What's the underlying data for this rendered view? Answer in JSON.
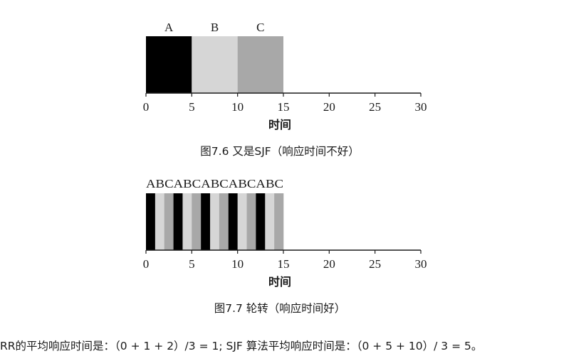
{
  "chart_data": [
    {
      "type": "bar",
      "subtype": "timeline",
      "title": "图7.6 又是SJF（响应时间不好）",
      "xlabel": "时间",
      "xlim": [
        0,
        30
      ],
      "xticks": [
        0,
        5,
        10,
        15,
        20,
        25,
        30
      ],
      "segments": [
        {
          "label": "A",
          "start": 0,
          "end": 5,
          "color": "#000000"
        },
        {
          "label": "B",
          "start": 5,
          "end": 10,
          "color": "#d6d6d6"
        },
        {
          "label": "C",
          "start": 10,
          "end": 15,
          "color": "#a8a8a8"
        }
      ]
    },
    {
      "type": "bar",
      "subtype": "timeline",
      "title": "图7.7 轮转（响应时间好）",
      "xlabel": "时间",
      "xlim": [
        0,
        30
      ],
      "xticks": [
        0,
        5,
        10,
        15,
        20,
        25,
        30
      ],
      "slice": 1,
      "pattern": [
        "A",
        "B",
        "C"
      ],
      "repeats": 5,
      "label_text": "ABCABCABCABCABC",
      "colors": {
        "A": "#000000",
        "B": "#d6d6d6",
        "C": "#a8a8a8"
      }
    }
  ],
  "footnote": "RR的平均响应时间是：（0 + 1 + 2）/3 = 1; SJF 算法平均响应时间是：（0 + 5 + 10）/ 3 = 5。"
}
